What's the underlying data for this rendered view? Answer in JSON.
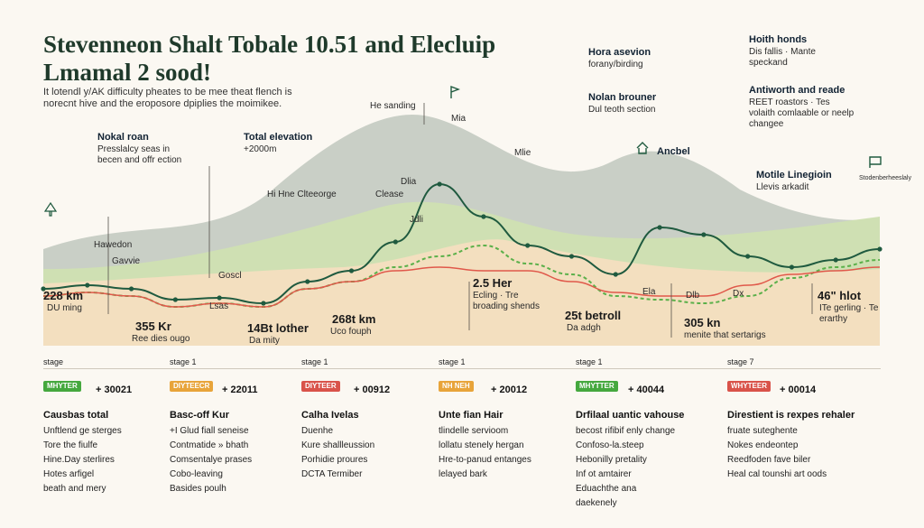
{
  "title": "Stevenneon Shalt Tobale 10.51 and Elecluip Lmamal 2 sood!",
  "subtitle": "It lotendl y/AK difficulty pheates to be mee theat flench is norecnt hive and the eroposore dpiplies the moimikee.",
  "colors": {
    "bg": "#fbf8f2",
    "hill_far": "#c9cfc6",
    "hill_mid": "#cfe0b3",
    "band": "#f3dfbf",
    "line_main": "#1f5a3f",
    "line_green": "#5bb04a",
    "line_red": "#e0584a",
    "line_gray": "#6b5f56"
  },
  "annotations": [
    {
      "title": "Nokal roan",
      "text": "Presslalcy seas in becen and offr ection"
    },
    {
      "title": "Total elevation",
      "text": "+2000m"
    },
    {
      "title": "Hora asevion",
      "text": "forany/birding"
    },
    {
      "title": "Nolan brouner",
      "text": "Dul teoth section"
    },
    {
      "title": "Hoith honds",
      "text": "Dis fallis · Mante speckand"
    },
    {
      "title": "Antiworth and reade",
      "text": "REET roastors · Tes volaith comlaable or neelp changee"
    },
    {
      "title": "Motile Linegioin",
      "text": "Llevis arkadit"
    },
    {
      "title": "Ancbel",
      "text": ""
    },
    {
      "title": "He sanding",
      "text": ""
    },
    {
      "title": "Mia",
      "text": ""
    },
    {
      "title": "Mlie",
      "text": ""
    },
    {
      "title": "Dlia",
      "text": ""
    },
    {
      "title": "Clease",
      "text": ""
    },
    {
      "title": "Hi Hne Clteeorge",
      "text": ""
    },
    {
      "title": "Jdli",
      "text": ""
    },
    {
      "title": "Hawedon",
      "text": ""
    },
    {
      "title": "Gavvie",
      "text": ""
    },
    {
      "title": "Goscl",
      "text": ""
    },
    {
      "title": "Lsas",
      "text": ""
    }
  ],
  "metrics": [
    {
      "value": "228 km",
      "text": "DU ming"
    },
    {
      "value": "355 Kr",
      "text": "Ree dies ougo"
    },
    {
      "value": "14Bt lother",
      "text": "Da mity"
    },
    {
      "value": "268t km",
      "text": "Uco fouph"
    },
    {
      "value": "2.5 Her",
      "text": "Ecling · Tre broading shends"
    },
    {
      "value": "25t betroll",
      "text": "Da adgh"
    },
    {
      "value": "305 kn",
      "text": "menite that sertarigs"
    },
    {
      "value": "46\" hlot",
      "text": "ITe gerling · Te erarthy"
    }
  ],
  "markers": [
    "Ela",
    "Dlb",
    "Dx"
  ],
  "legend_right_icon": "Stodenberheeslaly",
  "chart_data": {
    "type": "line",
    "title": "Stevenneon Shalt Tobale 10.51 and Elecluip Lmamal 2 sood!",
    "xlabel": "",
    "ylabel": "",
    "x": [
      0,
      50,
      100,
      150,
      200,
      250,
      300,
      350,
      400,
      450,
      500,
      550,
      600,
      650,
      700,
      750,
      800,
      850,
      900,
      950
    ],
    "series": [
      {
        "name": "",
        "values": [
          10,
          12,
          10,
          4,
          5,
          2,
          14,
          20,
          36,
          68,
          50,
          34,
          28,
          18,
          44,
          40,
          28,
          22,
          26,
          32
        ]
      },
      {
        "name": "",
        "values": [
          6,
          8,
          6,
          0,
          2,
          0,
          10,
          14,
          22,
          28,
          34,
          24,
          18,
          6,
          4,
          2,
          6,
          16,
          22,
          26
        ]
      },
      {
        "name": "",
        "values": [
          6,
          8,
          6,
          0,
          2,
          0,
          10,
          14,
          20,
          22,
          20,
          20,
          14,
          8,
          6,
          6,
          12,
          18,
          20,
          22
        ]
      }
    ],
    "ylim": [
      -10,
      100
    ],
    "grid": false
  },
  "stages": [
    {
      "name": "stage",
      "badge": "MHYTER",
      "badge_color": "#45a83e",
      "value": "+ 30021",
      "heading": "Causbas total",
      "items": [
        "Unftlend ge sterges",
        "Tore the fiulfe",
        "Hine.Day sterlires",
        "Hotes arfigel",
        "beath and mery"
      ]
    },
    {
      "name": "stage 1",
      "badge": "DIYTEECR",
      "badge_color": "#e8a43a",
      "value": "+ 22011",
      "heading": "Basc-off Kur",
      "items": [
        "+I Glud fiall seneise",
        "Contmatide » bhath",
        "Comsentalye prases",
        "Cobo-leaving",
        "Basides poulh"
      ]
    },
    {
      "name": "stage 1",
      "badge": "DIYTEER",
      "badge_color": "#d9534a",
      "value": "+ 00912",
      "heading": "Calha Ivelas",
      "items": [
        "Duenhe",
        "Kure shallleussion",
        "Porhidie proures",
        "DCTA Termiber"
      ]
    },
    {
      "name": "stage 1",
      "badge": "NH NEH",
      "badge_color": "#e8a43a",
      "value": "+ 20012",
      "heading": "Unte fian Hair",
      "items": [
        "tlindelle servioom",
        "lollatu stenely hergan",
        "Hre-to-panud entanges",
        "lelayed bark"
      ]
    },
    {
      "name": "stage 1",
      "badge": "MHYTTER",
      "badge_color": "#45a83e",
      "value": "+ 40044",
      "heading": "Drfilaal uantic vahouse",
      "items": [
        "becost rifibif enly change",
        "Confoso-la.steep",
        "Hebonilly pretality",
        "Inf ot amtairer",
        "Eduachthe ana",
        "daekenely"
      ]
    },
    {
      "name": "stage 7",
      "badge": "WHYTEER",
      "badge_color": "#d9534a",
      "value": "+ 00014",
      "heading": "Direstient is rexpes rehaler",
      "items": [
        "fruate suteghente",
        "Nokes endeontep",
        "Reedfoden fave biler",
        "Heal cal tounshi art oods"
      ]
    }
  ]
}
